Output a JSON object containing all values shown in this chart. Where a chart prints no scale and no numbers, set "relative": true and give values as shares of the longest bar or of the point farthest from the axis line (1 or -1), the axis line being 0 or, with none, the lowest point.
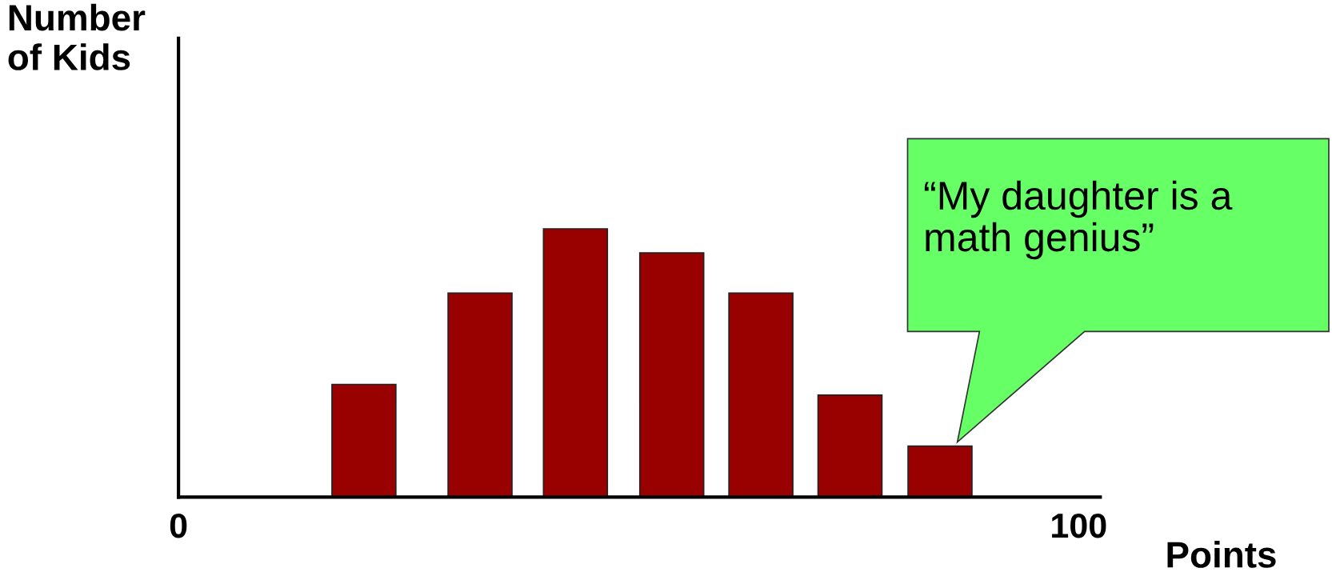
{
  "chart_data": {
    "type": "bar",
    "relative": true,
    "xlabel": "Points",
    "ylabel": "Number\nof Kids",
    "x": [
      20.6,
      33.5,
      44.1,
      54.8,
      64.7,
      74.6,
      84.6
    ],
    "values": [
      0.42,
      0.76,
      1,
      0.91,
      0.76,
      0.38,
      0.19
    ],
    "color": "#990000",
    "xlim": [
      0,
      102.4
    ],
    "xticks": [
      0,
      100
    ],
    "annotations": [
      "“My daughter is a\nmath genius”"
    ]
  }
}
